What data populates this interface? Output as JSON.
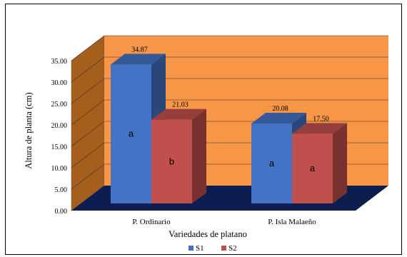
{
  "chart_data": {
    "type": "bar",
    "title": "",
    "xlabel": "Variedades de platano",
    "ylabel": "Altura de planta (cm)",
    "ylim": [
      0,
      35
    ],
    "yticks": [
      "0.00",
      "5.00",
      "10.00",
      "15.00",
      "20.00",
      "25.00",
      "30.00",
      "35.00"
    ],
    "grid": true,
    "legend_position": "bottom",
    "categories": [
      "P. Ordinario",
      "P. Isla Malaeño"
    ],
    "series": [
      {
        "name": "S1",
        "values": [
          34.87,
          20.08
        ],
        "value_labels": [
          "34.87",
          "20.08"
        ],
        "letters": [
          "a",
          "a"
        ],
        "color": "#4472C4"
      },
      {
        "name": "S2",
        "values": [
          21.03,
          17.5
        ],
        "value_labels": [
          "21.03",
          "17.50"
        ],
        "letters": [
          "b",
          "a"
        ],
        "color": "#C0504D"
      }
    ],
    "colors": {
      "back_wall": "#F79646",
      "side_wall": "#A65E1C",
      "floor": "#0B1E4F",
      "gridline": "#333333"
    }
  }
}
